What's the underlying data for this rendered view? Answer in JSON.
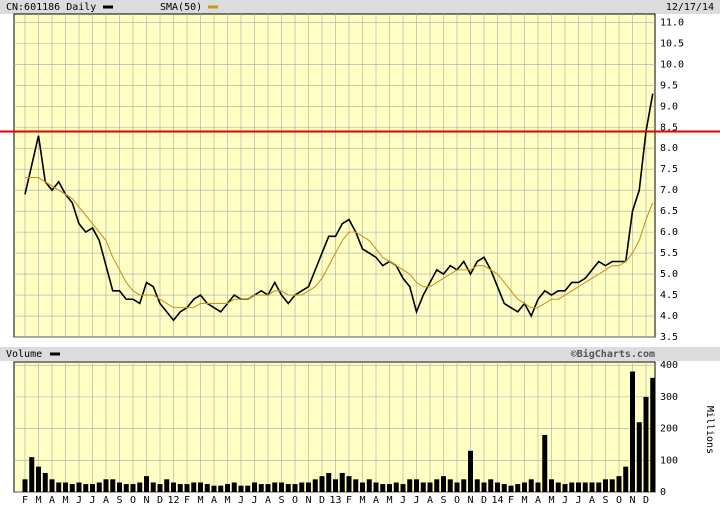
{
  "chart_data": [
    {
      "type": "line",
      "title": "CN:601186 Daily",
      "date": "12/17/14",
      "series": [
        {
          "name": "CN:601186 Daily",
          "color": "#000000",
          "values": [
            6.9,
            7.6,
            8.3,
            7.2,
            7.0,
            7.2,
            6.9,
            6.7,
            6.2,
            6.0,
            6.1,
            5.8,
            5.2,
            4.6,
            4.6,
            4.4,
            4.4,
            4.3,
            4.8,
            4.7,
            4.3,
            4.1,
            3.9,
            4.1,
            4.2,
            4.4,
            4.5,
            4.3,
            4.2,
            4.1,
            4.3,
            4.5,
            4.4,
            4.4,
            4.5,
            4.6,
            4.5,
            4.8,
            4.5,
            4.3,
            4.5,
            4.6,
            4.7,
            5.1,
            5.5,
            5.9,
            5.9,
            6.2,
            6.3,
            6.0,
            5.6,
            5.5,
            5.4,
            5.2,
            5.3,
            5.2,
            4.9,
            4.7,
            4.1,
            4.5,
            4.8,
            5.1,
            5.0,
            5.2,
            5.1,
            5.3,
            5.0,
            5.3,
            5.4,
            5.1,
            4.7,
            4.3,
            4.2,
            4.1,
            4.3,
            4.0,
            4.4,
            4.6,
            4.5,
            4.6,
            4.6,
            4.8,
            4.8,
            4.9,
            5.1,
            5.3,
            5.2,
            5.3,
            5.3,
            5.3,
            6.5,
            7.0,
            8.4,
            9.3
          ]
        },
        {
          "name": "SMA(50)",
          "color": "#c8961e",
          "values": [
            7.3,
            7.3,
            7.3,
            7.2,
            7.1,
            7.0,
            6.9,
            6.8,
            6.6,
            6.4,
            6.2,
            6.0,
            5.8,
            5.4,
            5.1,
            4.8,
            4.6,
            4.5,
            4.5,
            4.5,
            4.4,
            4.3,
            4.2,
            4.2,
            4.2,
            4.2,
            4.3,
            4.3,
            4.3,
            4.3,
            4.3,
            4.4,
            4.4,
            4.4,
            4.5,
            4.5,
            4.5,
            4.6,
            4.6,
            4.5,
            4.5,
            4.5,
            4.6,
            4.7,
            4.9,
            5.2,
            5.5,
            5.8,
            6.0,
            6.0,
            5.9,
            5.8,
            5.6,
            5.4,
            5.3,
            5.2,
            5.1,
            5.0,
            4.8,
            4.7,
            4.7,
            4.8,
            4.9,
            5.0,
            5.1,
            5.1,
            5.1,
            5.2,
            5.2,
            5.1,
            5.0,
            4.8,
            4.6,
            4.4,
            4.3,
            4.2,
            4.2,
            4.3,
            4.4,
            4.4,
            4.5,
            4.6,
            4.7,
            4.8,
            4.9,
            5.0,
            5.1,
            5.2,
            5.2,
            5.3,
            5.5,
            5.8,
            6.3,
            6.7
          ]
        }
      ],
      "reference_line": {
        "value": 8.4,
        "color": "#e00000"
      },
      "ylim": [
        3.5,
        11.2
      ],
      "yticks": [
        3.5,
        {
          "value": 4,
          "label": "4.0"
        },
        4.5,
        {
          "value": 5,
          "label": "5.0"
        },
        5.5,
        {
          "value": 6,
          "label": "6.0"
        },
        6.5,
        {
          "value": 7,
          "label": "7.0"
        },
        7.5,
        {
          "value": 8,
          "label": "8.0"
        },
        8.5,
        {
          "value": 9,
          "label": "9.0"
        },
        9.5,
        {
          "value": 10,
          "label": "10.0"
        },
        10.5,
        {
          "value": 11,
          "label": "11.0"
        }
      ],
      "grid": true
    },
    {
      "type": "bar",
      "source": "©BigCharts.com",
      "y_label": "Millions",
      "categories": [
        "F",
        null,
        "M",
        null,
        "A",
        null,
        "M",
        null,
        "J",
        null,
        "J",
        null,
        "A",
        null,
        "S",
        null,
        "O",
        null,
        "N",
        null,
        "D",
        null,
        "12",
        null,
        "F",
        null,
        "M",
        null,
        "A",
        null,
        "M",
        null,
        "J",
        null,
        "J",
        null,
        "A",
        null,
        "S",
        null,
        "O",
        null,
        "N",
        null,
        "D",
        null,
        "13",
        null,
        "F",
        null,
        "M",
        null,
        "A",
        null,
        "M",
        null,
        "J",
        null,
        "J",
        null,
        "A",
        null,
        "S",
        null,
        "O",
        null,
        "N",
        null,
        "D",
        null,
        "14",
        null,
        "F",
        null,
        "M",
        null,
        "A",
        null,
        "M",
        null,
        "J",
        null,
        "J",
        null,
        "A",
        null,
        "S",
        null,
        "O",
        null,
        "N",
        null,
        "D",
        null
      ],
      "series": [
        {
          "name": "Volume",
          "color": "#000000",
          "values": [
            40,
            110,
            80,
            60,
            40,
            30,
            30,
            25,
            30,
            25,
            25,
            30,
            40,
            40,
            30,
            25,
            25,
            30,
            50,
            30,
            25,
            40,
            30,
            25,
            25,
            30,
            30,
            25,
            20,
            20,
            25,
            30,
            20,
            20,
            30,
            25,
            25,
            30,
            30,
            25,
            25,
            30,
            30,
            40,
            50,
            60,
            40,
            60,
            50,
            40,
            30,
            40,
            30,
            25,
            25,
            30,
            25,
            40,
            40,
            30,
            30,
            40,
            50,
            40,
            30,
            40,
            130,
            40,
            30,
            40,
            30,
            25,
            20,
            25,
            30,
            40,
            30,
            180,
            40,
            30,
            25,
            30,
            30,
            30,
            30,
            30,
            40,
            40,
            50,
            80,
            380,
            220,
            300,
            360
          ]
        }
      ],
      "ylim": [
        0,
        410
      ],
      "yticks": [
        0,
        100,
        200,
        300,
        400
      ],
      "grid": true
    }
  ]
}
